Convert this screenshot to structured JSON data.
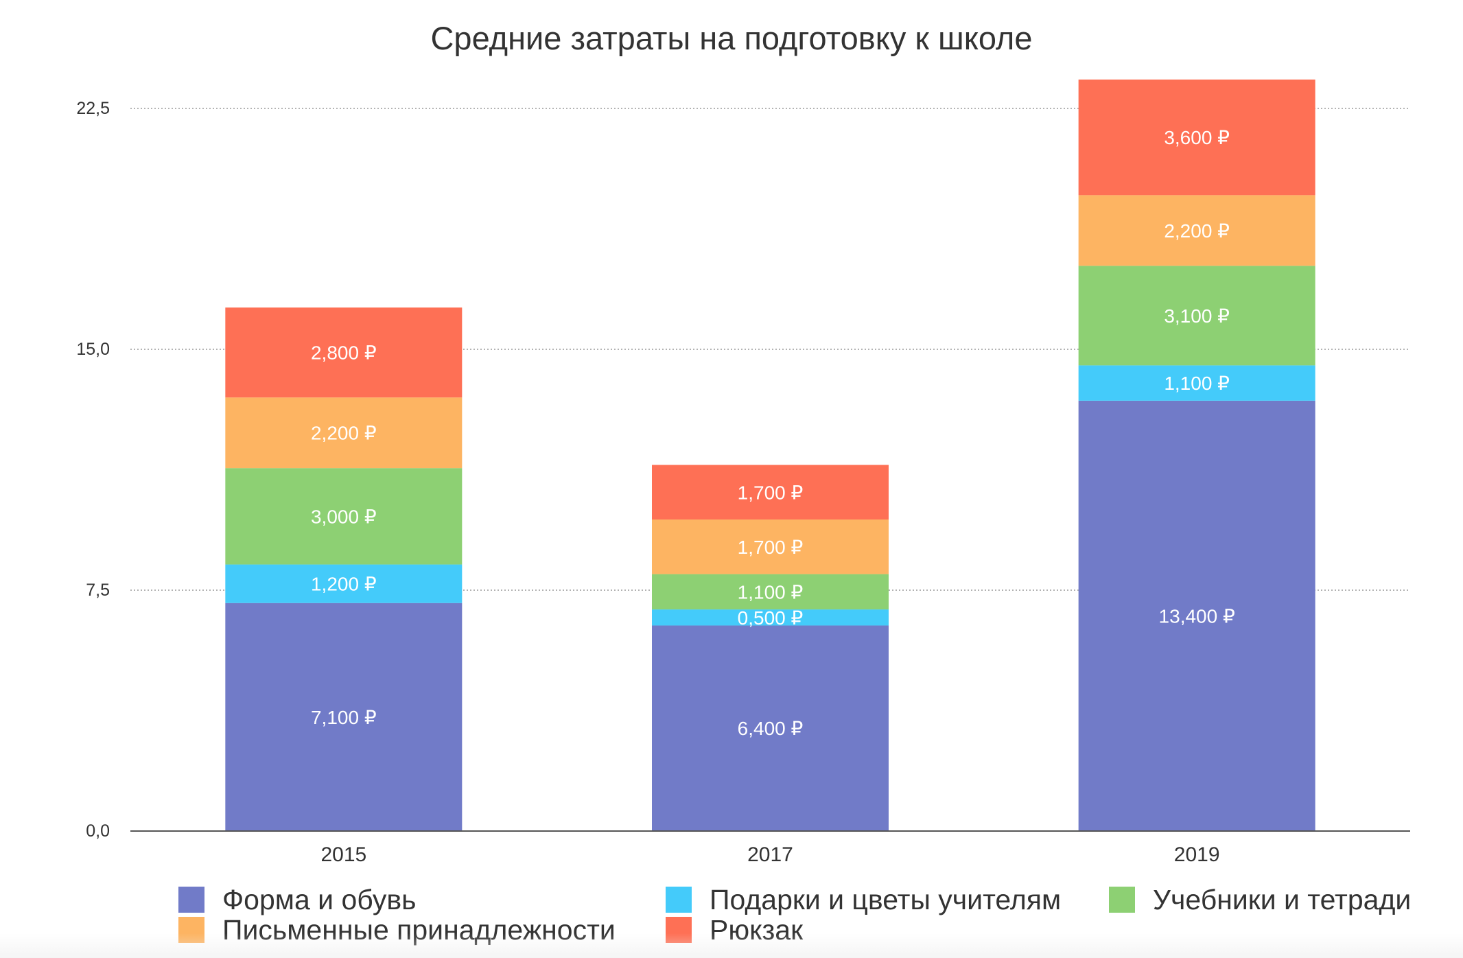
{
  "chart_data": {
    "type": "bar",
    "stacked": true,
    "title": "Средние затраты на подготовку к школе",
    "xlabel": "",
    "ylabel": "",
    "categories": [
      "2015",
      "2017",
      "2019"
    ],
    "ylim": [
      0,
      23.5
    ],
    "yticks": [
      0,
      7.5,
      15,
      22.5
    ],
    "ytick_labels": [
      "0,0",
      "7,5",
      "15,0",
      "22,5"
    ],
    "grid": true,
    "legend": "bottom",
    "series": [
      {
        "name": "Форма и обувь",
        "color": "#717bc8",
        "values": [
          7.1,
          6.4,
          13.4
        ],
        "labels": [
          "7,100 ₽",
          "6,400 ₽",
          "13,400 ₽"
        ]
      },
      {
        "name": "Подарки и цветы учителям",
        "color": "#44cbfa",
        "values": [
          1.2,
          0.5,
          1.1
        ],
        "labels": [
          "1,200 ₽",
          "0,500 ₽",
          "1,100 ₽"
        ]
      },
      {
        "name": "Учебники и тетради",
        "color": "#8dd073",
        "values": [
          3.0,
          1.1,
          3.1
        ],
        "labels": [
          "3,000 ₽",
          "1,100 ₽",
          "3,100 ₽"
        ]
      },
      {
        "name": "Письменные принадлежности",
        "color": "#fdb462",
        "values": [
          2.2,
          1.7,
          2.2
        ],
        "labels": [
          "2,200 ₽",
          "1,700 ₽",
          "2,200 ₽"
        ]
      },
      {
        "name": "Рюкзак",
        "color": "#fe7055",
        "values": [
          2.8,
          1.7,
          3.6
        ],
        "labels": [
          "2,800 ₽",
          "1,700 ₽",
          "3,600 ₽"
        ]
      }
    ]
  }
}
